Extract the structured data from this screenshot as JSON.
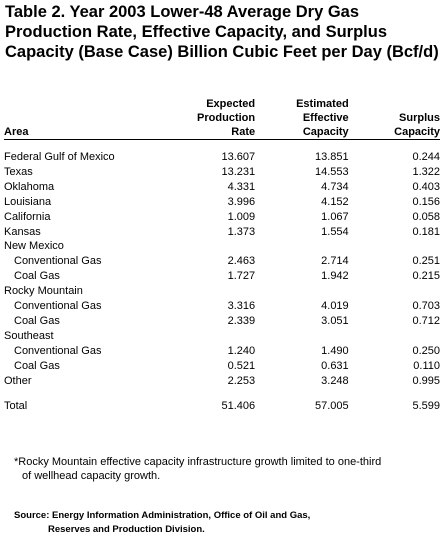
{
  "title": {
    "lines": [
      "Table 2.  Year 2003 Lower-48 Average Dry Gas",
      "Production Rate, Effective Capacity, and Surplus",
      "Capacity (Base Case) Billion Cubic Feet per Day (Bcf/d)"
    ]
  },
  "columns": {
    "area": "Area",
    "expected": [
      "Expected",
      "Production",
      "Rate"
    ],
    "estimated": [
      "Estimated",
      "Effective",
      "Capacity"
    ],
    "surplus": [
      "Surplus",
      "Capacity"
    ]
  },
  "rows": [
    {
      "area": "Federal Gulf of Mexico",
      "expected": "13.607",
      "estimated": "13.851",
      "surplus": "0.244",
      "indent": false
    },
    {
      "area": "Texas",
      "expected": "13.231",
      "estimated": "14.553",
      "surplus": "1.322",
      "indent": false
    },
    {
      "area": "Oklahoma",
      "expected": "4.331",
      "estimated": "4.734",
      "surplus": "0.403",
      "indent": false
    },
    {
      "area": "Louisiana",
      "expected": "3.996",
      "estimated": "4.152",
      "surplus": "0.156",
      "indent": false
    },
    {
      "area": "California",
      "expected": "1.009",
      "estimated": "1.067",
      "surplus": "0.058",
      "indent": false
    },
    {
      "area": "Kansas",
      "expected": "1.373",
      "estimated": "1.554",
      "surplus": "0.181",
      "indent": false
    },
    {
      "area": "New Mexico",
      "expected": "",
      "estimated": "",
      "surplus": "",
      "indent": false
    },
    {
      "area": "Conventional Gas",
      "expected": "2.463",
      "estimated": "2.714",
      "surplus": "0.251",
      "indent": true
    },
    {
      "area": "Coal Gas",
      "expected": "1.727",
      "estimated": "1.942",
      "surplus": "0.215",
      "indent": true
    },
    {
      "area": "Rocky Mountain",
      "expected": "",
      "estimated": "",
      "surplus": "",
      "indent": false
    },
    {
      "area": "Conventional Gas",
      "expected": "3.316",
      "estimated": "4.019",
      "surplus": "0.703",
      "indent": true
    },
    {
      "area": "Coal Gas",
      "expected": "2.339",
      "estimated": "3.051",
      "surplus": "0.712",
      "indent": true
    },
    {
      "area": "Southeast",
      "expected": "",
      "estimated": "",
      "surplus": "",
      "indent": false
    },
    {
      "area": "Conventional Gas",
      "expected": "1.240",
      "estimated": "1.490",
      "surplus": "0.250",
      "indent": true
    },
    {
      "area": "Coal Gas",
      "expected": "0.521",
      "estimated": "0.631",
      "surplus": "0.110",
      "indent": true
    },
    {
      "area": "Other",
      "expected": "2.253",
      "estimated": "3.248",
      "surplus": "0.995",
      "indent": false
    }
  ],
  "total": {
    "area": "Total",
    "expected": "51.406",
    "estimated": "57.005",
    "surplus": "5.599"
  },
  "footnote": [
    "*Rocky Mountain effective capacity infrastructure growth limited to one-third",
    "of wellhead capacity growth."
  ],
  "source": [
    "Source: Energy Information Administration, Office of Oil and Gas,",
    "Reserves and Production Division."
  ]
}
